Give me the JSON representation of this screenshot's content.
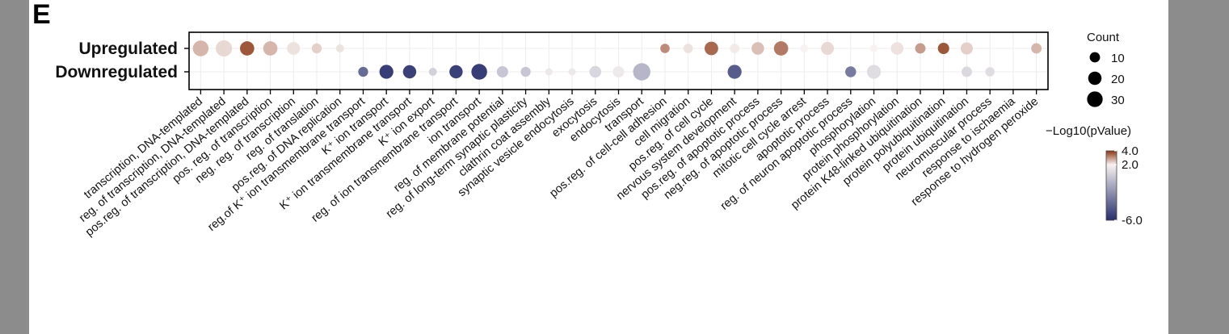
{
  "panel_letter": "E",
  "chart_data": {
    "type": "scatter",
    "rows": [
      "Upregulated",
      "Downregulated"
    ],
    "categories": [
      "transcription, DNA-templated",
      "reg. of transcription, DNA-templated",
      "pos.reg. of transcription, DNA-templated",
      "pos. reg. of transcription",
      "neg. reg. of transcription",
      "reg. of translation",
      "pos.reg. of DNA replication",
      "reg.of K⁺ ion transmembrane transport",
      "K⁺ ion transport",
      "K⁺ ion transmembrane transport",
      "K⁺ ion export",
      "reg. of ion transmembrane transport",
      "ion transport",
      "reg. of membrane potential",
      "reg. of long-term synaptic plasticity",
      "clathrin coat assembly",
      "synaptic vesicle endocytosis",
      "exocytosis",
      "endocytosis",
      "transport",
      "pos.reg. of cell-cell adhesion",
      "cell migration",
      "pos.reg. of cell cycle",
      "nervous system development",
      "pos.reg. of apoptotic process",
      "neg.reg. of apoptotic process",
      "mitotic cell cycle arrest",
      "apoptotic process",
      "reg. of neuron apoptotic process",
      "phosphorylation",
      "protein phosphorylation",
      "protein K48-linked ubiquitination",
      "protein polyubiquitination",
      "protein ubiquitination",
      "neuromuscular process",
      "response to ischaemia",
      "response to hydrogen peroxide"
    ],
    "points": [
      {
        "row": "Upregulated",
        "category": "transcription, DNA-templated",
        "count": 22,
        "value": 2.7
      },
      {
        "row": "Upregulated",
        "category": "reg. of transcription, DNA-templated",
        "count": 24,
        "value": 2.3
      },
      {
        "row": "Upregulated",
        "category": "pos.reg. of transcription, DNA-templated",
        "count": 17,
        "value": 3.8
      },
      {
        "row": "Upregulated",
        "category": "pos. reg. of transcription",
        "count": 17,
        "value": 2.7
      },
      {
        "row": "Upregulated",
        "category": "neg. reg. of transcription",
        "count": 13,
        "value": 2.2
      },
      {
        "row": "Upregulated",
        "category": "reg. of translation",
        "count": 6,
        "value": 2.4
      },
      {
        "row": "Upregulated",
        "category": "pos.reg. of DNA replication",
        "count": 3,
        "value": 2.2
      },
      {
        "row": "Upregulated",
        "category": "pos.reg. of cell-cell adhesion",
        "count": 5,
        "value": 3.2
      },
      {
        "row": "Upregulated",
        "category": "cell migration",
        "count": 5,
        "value": 2.2
      },
      {
        "row": "Upregulated",
        "category": "pos.reg. of cell cycle",
        "count": 15,
        "value": 3.6
      },
      {
        "row": "Upregulated",
        "category": "nervous system development",
        "count": 5,
        "value": 2.1
      },
      {
        "row": "Upregulated",
        "category": "pos.reg. of apoptotic process",
        "count": 12,
        "value": 2.6
      },
      {
        "row": "Upregulated",
        "category": "neg.reg. of apoptotic process",
        "count": 17,
        "value": 3.4
      },
      {
        "row": "Upregulated",
        "category": "mitotic cell cycle arrest",
        "count": 3,
        "value": 2.0
      },
      {
        "row": "Upregulated",
        "category": "apoptotic process",
        "count": 13,
        "value": 2.3
      },
      {
        "row": "Upregulated",
        "category": "phosphorylation",
        "count": 3,
        "value": 2.0
      },
      {
        "row": "Upregulated",
        "category": "protein phosphorylation",
        "count": 12,
        "value": 2.2
      },
      {
        "row": "Upregulated",
        "category": "protein K48-linked ubiquitination",
        "count": 7,
        "value": 3.0
      },
      {
        "row": "Upregulated",
        "category": "protein polyubiquitination",
        "count": 9,
        "value": 3.8
      },
      {
        "row": "Upregulated",
        "category": "protein ubiquitination",
        "count": 11,
        "value": 2.4
      },
      {
        "row": "Upregulated",
        "category": "response to hydrogen peroxide",
        "count": 7,
        "value": 2.7
      },
      {
        "row": "Downregulated",
        "category": "reg.of K⁺ ion transmembrane transport",
        "count": 6,
        "value": -4.0
      },
      {
        "row": "Downregulated",
        "category": "K⁺ ion transport",
        "count": 16,
        "value": -6.0
      },
      {
        "row": "Downregulated",
        "category": "K⁺ ion transmembrane transport",
        "count": 14,
        "value": -5.9
      },
      {
        "row": "Downregulated",
        "category": "K⁺ ion export",
        "count": 3,
        "value": 0.5
      },
      {
        "row": "Downregulated",
        "category": "reg. of ion transmembrane transport",
        "count": 14,
        "value": -5.9
      },
      {
        "row": "Downregulated",
        "category": "ion transport",
        "count": 22,
        "value": -6.0
      },
      {
        "row": "Downregulated",
        "category": "reg. of membrane potential",
        "count": 9,
        "value": 0.0
      },
      {
        "row": "Downregulated",
        "category": "reg. of long-term synaptic plasticity",
        "count": 6,
        "value": 0.0
      },
      {
        "row": "Downregulated",
        "category": "clathrin coat assembly",
        "count": 2,
        "value": 1.5
      },
      {
        "row": "Downregulated",
        "category": "synaptic vesicle endocytosis",
        "count": 2,
        "value": 1.5
      },
      {
        "row": "Downregulated",
        "category": "exocytosis",
        "count": 10,
        "value": 0.7
      },
      {
        "row": "Downregulated",
        "category": "endocytosis",
        "count": 9,
        "value": 1.6
      },
      {
        "row": "Downregulated",
        "category": "transport",
        "count": 28,
        "value": -0.7
      },
      {
        "row": "Downregulated",
        "category": "nervous system development",
        "count": 16,
        "value": -4.7
      },
      {
        "row": "Downregulated",
        "category": "reg. of neuron apoptotic process",
        "count": 8,
        "value": -3.3
      },
      {
        "row": "Downregulated",
        "category": "phosphorylation",
        "count": 16,
        "value": 1.0
      },
      {
        "row": "Downregulated",
        "category": "protein ubiquitination",
        "count": 7,
        "value": 0.8
      },
      {
        "row": "Downregulated",
        "category": "neuromuscular process",
        "count": 5,
        "value": 1.0
      }
    ],
    "size_legend": {
      "title": "Count",
      "values": [
        10,
        20,
        30
      ],
      "labels": [
        "10",
        "20",
        "30"
      ]
    },
    "color_legend": {
      "title": "−Log10(pValue)",
      "tick_labels": [
        "4.0",
        "2.0",
        "-6.0"
      ],
      "min": -6.0,
      "mid": 2.0,
      "max": 4.0,
      "colors": {
        "low": "#262e6b",
        "mid": "#f7f2f1",
        "high": "#8c3612"
      }
    },
    "grid": true
  }
}
